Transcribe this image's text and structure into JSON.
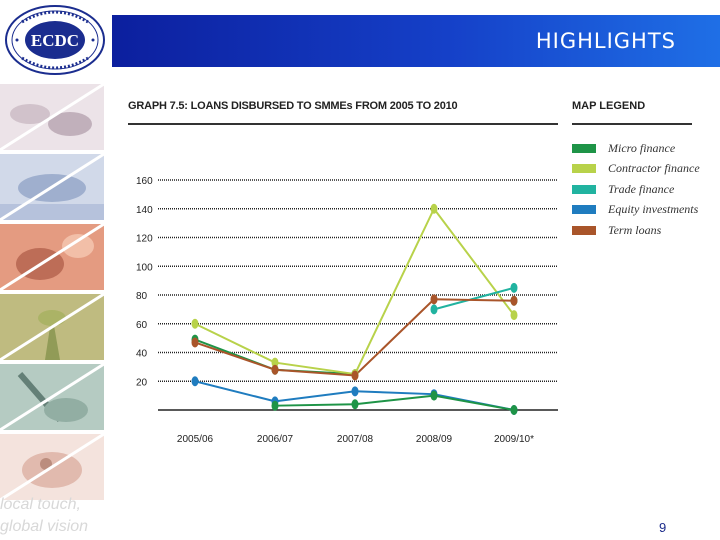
{
  "header": {
    "title": "HIGHLIGHTS"
  },
  "logo": {
    "text": "ECDC",
    "ring_text": "EASTERN CAPE DEVELOPMENT CORPORATION"
  },
  "slogan": {
    "line1": "local touch,",
    "line2": "global vision"
  },
  "page_number": "9",
  "colors": {
    "header_blue": "#1540c8",
    "micro": "#1e9447",
    "contractor": "#b8d24a",
    "trade": "#21b3a0",
    "equity": "#1f7cbf",
    "term": "#a9552a"
  },
  "chart_data": {
    "type": "line",
    "title": "GRAPH 7.5: LOANS DISBURSED TO SMMEs FROM 2005 TO 2010",
    "xlabel": "",
    "ylabel": "",
    "categories": [
      "2005/06",
      "2006/07",
      "2007/08",
      "2008/09",
      "2009/10*"
    ],
    "yticks": [
      20,
      40,
      60,
      80,
      100,
      120,
      140,
      160
    ],
    "ylim": [
      0,
      160
    ],
    "grid": true,
    "legend_title": "MAP LEGEND",
    "legend_position": "right",
    "series": [
      {
        "name": "Micro finance",
        "color": "#1e9447",
        "values": [
          49,
          28,
          25,
          null,
          76
        ]
      },
      {
        "name": "Contractor finance",
        "color": "#b8d24a",
        "values": [
          60,
          33,
          25,
          140,
          66
        ]
      },
      {
        "name": "Trade finance",
        "color": "#21b3a0",
        "values": [
          null,
          null,
          null,
          70,
          85
        ]
      },
      {
        "name": "Equity investments",
        "color": "#1f7cbf",
        "values": [
          20,
          6,
          13,
          11,
          0
        ]
      },
      {
        "name": "Term loans",
        "color": "#a9552a",
        "values": [
          47,
          28,
          24,
          77,
          76
        ]
      },
      {
        "name": "",
        "color": "#1e9447",
        "values": [
          null,
          3,
          4,
          10,
          0
        ]
      }
    ]
  }
}
